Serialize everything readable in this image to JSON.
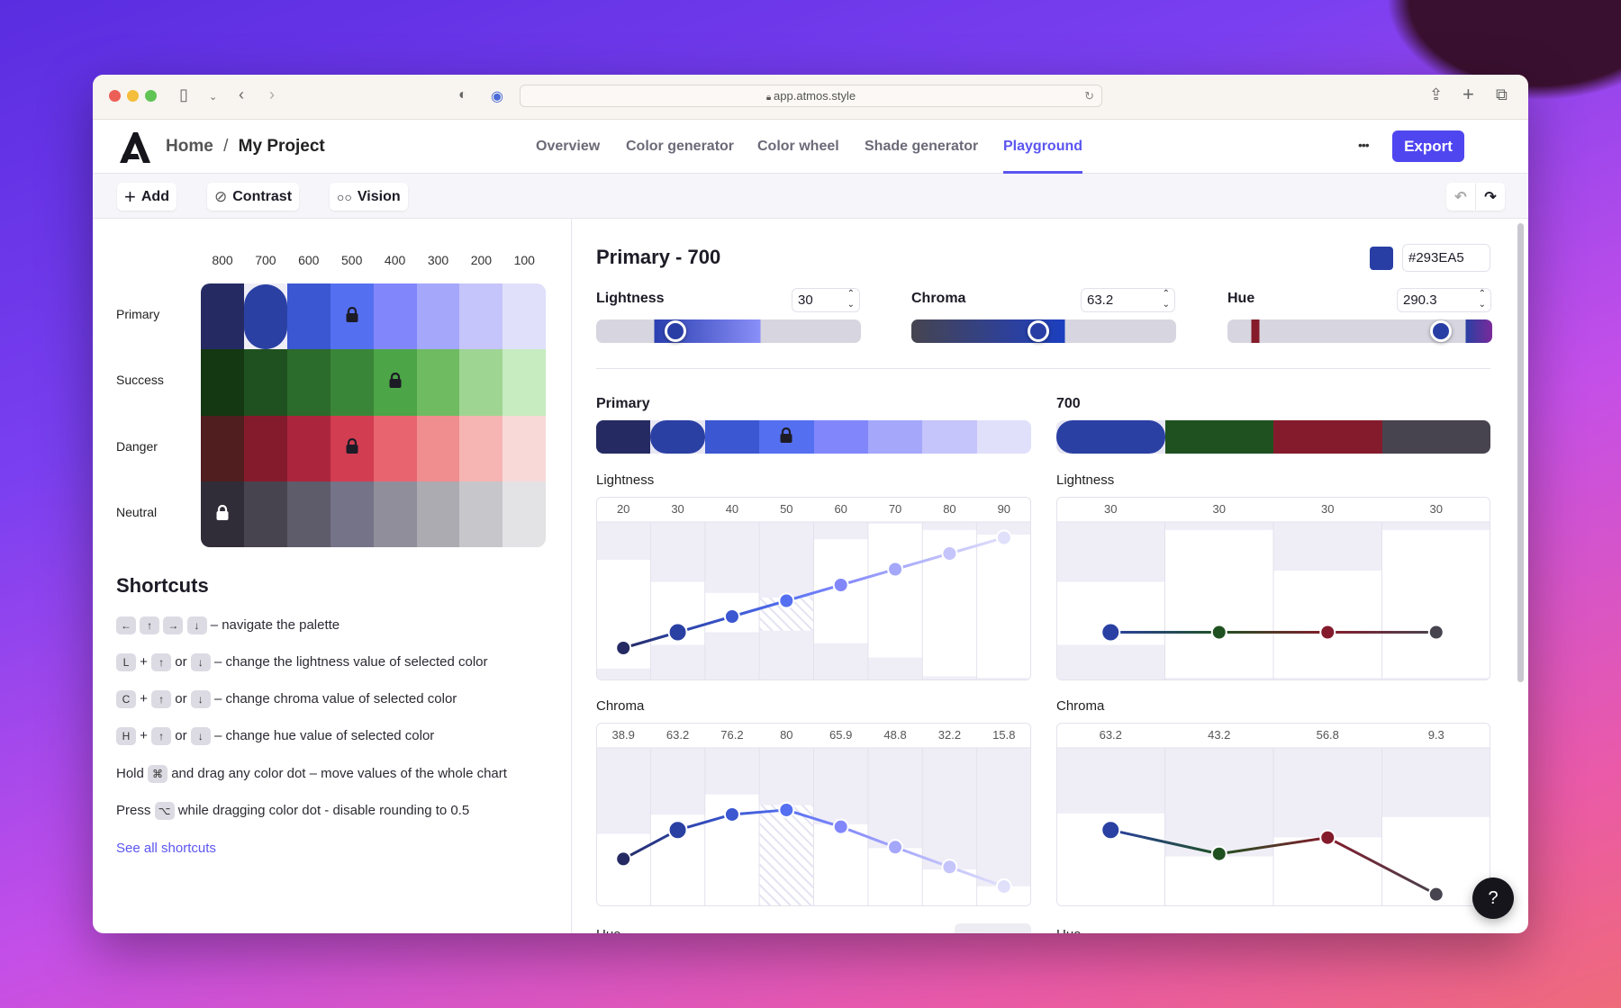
{
  "browser": {
    "url": "app.atmos.style"
  },
  "nav": {
    "home": "Home",
    "separator": "/",
    "project": "My Project",
    "tabs": [
      "Overview",
      "Color generator",
      "Color wheel",
      "Shade generator",
      "Playground"
    ],
    "active_tab": "Playground",
    "more": "•••",
    "export": "Export"
  },
  "toolbar": {
    "add": "Add",
    "contrast": "Contrast",
    "vision": "Vision"
  },
  "palette": {
    "shades": [
      "800",
      "700",
      "600",
      "500",
      "400",
      "300",
      "200",
      "100"
    ],
    "selected": {
      "row": 0,
      "col": 1
    },
    "rows": [
      {
        "name": "Primary",
        "colors": [
          "#252b62",
          "#2a40a3",
          "#3b57d1",
          "#5470f0",
          "#8187fb",
          "#a4a7fa",
          "#c5c4fb",
          "#e0e0fb"
        ],
        "locked": 3,
        "lock_color": "#1d1b26"
      },
      {
        "name": "Success",
        "colors": [
          "#133812",
          "#1f5120",
          "#2b6b2b",
          "#3a8638",
          "#4ca547",
          "#6fbb62",
          "#9fd593",
          "#c6ecbf"
        ],
        "locked": 4,
        "lock_color": "#1d1b26"
      },
      {
        "name": "Danger",
        "colors": [
          "#511e20",
          "#841b2c",
          "#ab253d",
          "#d23d52",
          "#e86570",
          "#f08d8e",
          "#f6b5b3",
          "#f9d9d8"
        ],
        "locked": 3,
        "lock_color": "#1d1b26"
      },
      {
        "name": "Neutral",
        "colors": [
          "#302d38",
          "#47444f",
          "#5e5c6b",
          "#757387",
          "#908e9b",
          "#acabb1",
          "#c7c6cb",
          "#e3e3e5"
        ],
        "locked": 0,
        "lock_color": "#ffffff"
      }
    ]
  },
  "shortcuts": {
    "title": "Shortcuts",
    "items": [
      {
        "keys": [
          "←",
          "↑",
          "→",
          "↓"
        ],
        "text": "– navigate the palette"
      },
      {
        "pre": "L",
        "mid": "or",
        "text": "– change the lightness value of selected color"
      },
      {
        "pre": "C",
        "mid": "or",
        "text": "– change chroma value of selected color"
      },
      {
        "pre": "H",
        "mid": "or",
        "text": "– change hue value of selected color"
      }
    ],
    "hold": {
      "a": "Hold",
      "key": "⌘",
      "b": "and drag any color dot – move values of the whole chart"
    },
    "press": {
      "a": "Press",
      "key": "⌥",
      "b": "while dragging color dot - disable rounding to 0.5"
    },
    "plus": "+",
    "up": "↑",
    "down": "↓",
    "link": "See all shortcuts"
  },
  "editor": {
    "title": "Primary - 700",
    "hex": "#293EA5",
    "color": "#293EA5",
    "lightness": {
      "label": "Lightness",
      "value": "30",
      "fraction": 0.3
    },
    "chroma": {
      "label": "Chroma",
      "value": "63.2",
      "fraction": 0.48
    },
    "hue": {
      "label": "Hue",
      "value": "290.3",
      "fraction": 0.806
    }
  },
  "row_section": {
    "title": "Primary"
  },
  "col_section": {
    "title": "700",
    "colors": [
      "#2a40a3",
      "#1f5120",
      "#841b2c",
      "#47444f"
    ]
  },
  "chart_data": [
    {
      "type": "line",
      "title": "Lightness",
      "ylim": [
        0,
        100
      ],
      "categories": [
        "800",
        "700",
        "600",
        "500",
        "400",
        "300",
        "200",
        "100"
      ],
      "values": [
        20,
        30,
        40,
        50,
        60,
        70,
        80,
        90
      ],
      "value_labels": [
        "20",
        "30",
        "40",
        "50",
        "60",
        "70",
        "80",
        "90"
      ],
      "ranges": [
        [
          7,
          76
        ],
        [
          22,
          62
        ],
        [
          30,
          55
        ],
        [
          31,
          52
        ],
        [
          23,
          89
        ],
        [
          14,
          99
        ],
        [
          2,
          95
        ],
        [
          1,
          92
        ]
      ],
      "locked_index": 3,
      "selected_index": 1
    },
    {
      "type": "line",
      "title": "Lightness",
      "ylim": [
        0,
        100
      ],
      "categories": [
        "Primary",
        "Success",
        "Danger",
        "Neutral"
      ],
      "values": [
        30,
        30,
        30,
        30
      ],
      "value_labels": [
        "30",
        "30",
        "30",
        "30"
      ],
      "ranges": [
        [
          22,
          62
        ],
        [
          1,
          95
        ],
        [
          1,
          69
        ],
        [
          1,
          95
        ]
      ],
      "selected_index": 0
    },
    {
      "type": "line",
      "title": "Chroma",
      "ylim": [
        0,
        132
      ],
      "categories": [
        "800",
        "700",
        "600",
        "500",
        "400",
        "300",
        "200",
        "100"
      ],
      "values": [
        38.9,
        63.2,
        76.2,
        80,
        65.9,
        48.8,
        32.2,
        15.8
      ],
      "value_labels": [
        "38.9",
        "63.2",
        "76.2",
        "80",
        "65.9",
        "48.8",
        "32.2",
        "15.8"
      ],
      "ranges": [
        [
          0,
          60
        ],
        [
          0,
          76
        ],
        [
          0,
          93
        ],
        [
          0,
          84
        ],
        [
          0,
          68
        ],
        [
          0,
          48
        ],
        [
          0,
          30
        ],
        [
          0,
          16
        ]
      ],
      "locked_index": 3,
      "selected_index": 1
    },
    {
      "type": "line",
      "title": "Chroma",
      "ylim": [
        0,
        132
      ],
      "categories": [
        "Primary",
        "Success",
        "Danger",
        "Neutral"
      ],
      "values": [
        63.2,
        43.2,
        56.8,
        9.3
      ],
      "value_labels": [
        "63.2",
        "43.2",
        "56.8",
        "9.3"
      ],
      "ranges": [
        [
          0,
          77
        ],
        [
          0,
          41
        ],
        [
          0,
          57
        ],
        [
          0,
          74
        ]
      ],
      "selected_index": 0
    }
  ],
  "hue_section": {
    "left": "Hue",
    "right": "Hue"
  },
  "help": "?"
}
